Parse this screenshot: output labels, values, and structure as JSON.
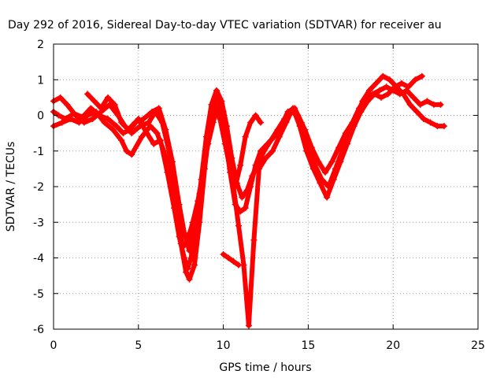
{
  "chart_data": {
    "type": "scatter",
    "title": "Day 292 of 2016, Sidereal Day-to-day VTEC variation (SDTVAR) for receiver au",
    "xlabel": "GPS time / hours",
    "ylabel": "SDTVAR / TECUs",
    "xlim": [
      0,
      25
    ],
    "ylim": [
      -6,
      2
    ],
    "xticks": [
      "0",
      "5",
      "10",
      "15",
      "20",
      "25"
    ],
    "yticks": [
      "-6",
      "-5",
      "-4",
      "-3",
      "-2",
      "-1",
      "0",
      "1",
      "2"
    ],
    "grid": true,
    "legend": "none",
    "marker": "plus",
    "color": "#ff0000",
    "series": [
      {
        "x": [
          0,
          0.3,
          0.7,
          1.2,
          1.7,
          2.2,
          2.7,
          3.2,
          3.7,
          4.1,
          4.5,
          5.0,
          5.5,
          5.9,
          6.3,
          6.7,
          7.1,
          7.4,
          7.7,
          7.9,
          8.1,
          8.4,
          8.7,
          9.0,
          9.3,
          9.6,
          9.9,
          10.2,
          10.5,
          10.8,
          11.1,
          11.4,
          11.7,
          12.0,
          12.4,
          12.8,
          13.2,
          13.6,
          14.0,
          14.4,
          14.8,
          15.2,
          15.6,
          16.0,
          16.4,
          16.8,
          17.2,
          17.6,
          18.0,
          18.4,
          18.8,
          19.2,
          19.6,
          20.0,
          20.4,
          20.8,
          21.2,
          21.6,
          22.0,
          22.4,
          22.8
        ],
        "y": [
          0.1,
          0.0,
          -0.1,
          0.05,
          -0.05,
          0.2,
          0.0,
          -0.1,
          -0.3,
          -0.5,
          -0.4,
          -0.1,
          -0.5,
          -0.8,
          -0.7,
          -1.6,
          -2.6,
          -3.4,
          -4.0,
          -4.3,
          -4.0,
          -3.0,
          -1.8,
          -0.6,
          0.3,
          0.7,
          0.4,
          -0.3,
          -1.2,
          -1.9,
          -2.3,
          -2.1,
          -1.7,
          -1.4,
          -1.0,
          -0.7,
          -0.4,
          -0.1,
          0.1,
          0.0,
          -0.4,
          -0.9,
          -1.3,
          -1.6,
          -1.3,
          -0.9,
          -0.5,
          -0.2,
          0.2,
          0.5,
          0.6,
          0.7,
          0.8,
          0.7,
          0.6,
          0.7,
          0.5,
          0.3,
          0.4,
          0.3,
          0.3
        ]
      },
      {
        "x": [
          0,
          0.4,
          0.8,
          1.3,
          1.8,
          2.3,
          2.8,
          3.3,
          3.8,
          4.2,
          4.6,
          5.1,
          5.6,
          6.0,
          6.4,
          6.8,
          7.2,
          7.5,
          7.8,
          8.0,
          8.3,
          8.6,
          8.9,
          9.2,
          9.5,
          9.8,
          10.1,
          10.4,
          10.7,
          11.0,
          11.3,
          11.6,
          11.9,
          12.2,
          12.6,
          13.0,
          13.4,
          13.8,
          14.2,
          14.6,
          15.0,
          15.4,
          15.8,
          16.2,
          16.6,
          17.0,
          17.4,
          17.8,
          18.2,
          18.6,
          19.0,
          19.4,
          19.8,
          20.2,
          20.6,
          21.0,
          21.4,
          21.8,
          22.2,
          22.6,
          23.0
        ],
        "y": [
          0.4,
          0.5,
          0.3,
          0.0,
          -0.2,
          -0.1,
          0.1,
          0.3,
          0.0,
          -0.3,
          -0.5,
          -0.3,
          -0.2,
          0.1,
          -0.2,
          -1.0,
          -2.4,
          -3.6,
          -4.4,
          -4.6,
          -4.2,
          -3.0,
          -1.5,
          -0.3,
          0.5,
          0.2,
          -0.6,
          -1.6,
          -2.5,
          -2.7,
          -2.6,
          -2.0,
          -1.4,
          -1.0,
          -0.8,
          -0.6,
          -0.3,
          0.1,
          0.2,
          -0.2,
          -0.8,
          -1.4,
          -1.8,
          -2.0,
          -1.5,
          -1.0,
          -0.5,
          -0.1,
          0.4,
          0.7,
          0.9,
          1.1,
          1.0,
          0.8,
          0.6,
          0.3,
          0.1,
          -0.1,
          -0.2,
          -0.3,
          -0.3
        ]
      },
      {
        "x": [
          0,
          0.5,
          1.0,
          1.5,
          2.0,
          2.5,
          3.0,
          3.5,
          4.0,
          4.3,
          4.6,
          5.2,
          5.7,
          6.1,
          6.5,
          6.9,
          7.3,
          7.6,
          7.9,
          8.2,
          8.5,
          8.8,
          9.1,
          9.4,
          9.7,
          10.0,
          10.3,
          10.6,
          10.9,
          11.2,
          11.5,
          11.8,
          12.1,
          12.5,
          12.9,
          13.3,
          13.7,
          14.1,
          14.5,
          14.9,
          15.3,
          15.7,
          16.1,
          16.5,
          16.9,
          17.3,
          17.7,
          18.1,
          18.5,
          18.9,
          19.3,
          19.7,
          20.1,
          20.5,
          20.9,
          21.3,
          21.7
        ],
        "y": [
          -0.3,
          -0.2,
          -0.1,
          -0.2,
          0.0,
          0.1,
          -0.2,
          -0.4,
          -0.7,
          -1.0,
          -1.1,
          -0.6,
          -0.3,
          -0.5,
          -1.0,
          -1.8,
          -2.9,
          -3.7,
          -3.5,
          -3.0,
          -2.4,
          -1.6,
          -0.8,
          -0.2,
          0.4,
          0.1,
          -0.9,
          -2.0,
          -3.1,
          -4.2,
          -5.9,
          -3.5,
          -1.5,
          -1.2,
          -1.0,
          -0.6,
          -0.2,
          0.2,
          -0.3,
          -1.0,
          -1.5,
          -1.9,
          -2.3,
          -1.8,
          -1.3,
          -0.8,
          -0.3,
          0.1,
          0.4,
          0.6,
          0.5,
          0.6,
          0.8,
          0.9,
          0.8,
          1.0,
          1.1
        ]
      },
      {
        "x": [
          2.0,
          2.4,
          2.8,
          3.2,
          3.6,
          4.0,
          4.4,
          4.8,
          5.3,
          5.8,
          6.2,
          6.6,
          7.0,
          7.4,
          7.7,
          8.0,
          8.3,
          8.6,
          8.9,
          9.2,
          9.5,
          9.8,
          10.1,
          10.4,
          10.7,
          11.0,
          11.3,
          11.6,
          11.9,
          12.2
        ],
        "y": [
          0.6,
          0.4,
          0.2,
          0.5,
          0.3,
          -0.2,
          -0.4,
          -0.2,
          -0.1,
          0.1,
          0.2,
          -0.4,
          -1.3,
          -2.5,
          -3.3,
          -3.8,
          -3.2,
          -2.2,
          -1.2,
          -0.4,
          0.2,
          -0.1,
          -0.8,
          -1.5,
          -2.0,
          -1.4,
          -0.6,
          -0.2,
          0.0,
          -0.2
        ]
      },
      {
        "x": [
          10.0,
          10.3,
          10.6,
          10.9
        ],
        "y": [
          -3.9,
          -4.0,
          -4.1,
          -4.2
        ]
      }
    ]
  }
}
